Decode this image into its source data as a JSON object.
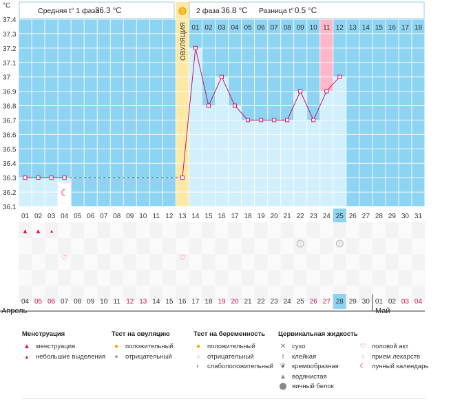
{
  "unit_label": "°C",
  "header": {
    "phase1_label": "Средняя t° 1 фаза",
    "phase1_value": "36.3 °C",
    "phase2_label": "2 фаза",
    "phase2_value": "36.8 °C",
    "diff_label": "Разница t°",
    "diff_value": "0.5 °C"
  },
  "ovulation_label": "ОВУЛЯЦИЯ",
  "phase2_day_labels": [
    "01",
    "02",
    "03",
    "04",
    "05",
    "06",
    "07",
    "08",
    "09",
    "10",
    "11",
    "12",
    "13",
    "14",
    "15",
    "16",
    "17",
    "18"
  ],
  "cycle_days": [
    "01",
    "02",
    "03",
    "04",
    "05",
    "06",
    "07",
    "08",
    "09",
    "10",
    "11",
    "12",
    "13",
    "14",
    "15",
    "16",
    "17",
    "18",
    "19",
    "20",
    "21",
    "22",
    "23",
    "24",
    "25",
    "26",
    "27",
    "28",
    "29",
    "30",
    "31"
  ],
  "calendar_dates": [
    "04",
    "05",
    "06",
    "07",
    "08",
    "09",
    "10",
    "11",
    "12",
    "13",
    "14",
    "15",
    "16",
    "17",
    "18",
    "19",
    "20",
    "21",
    "22",
    "23",
    "24",
    "25",
    "26",
    "27",
    "28",
    "29",
    "30",
    "01",
    "02",
    "03",
    "04"
  ],
  "weekend_dates_idx": [
    1,
    2,
    8,
    9,
    15,
    16,
    22,
    23,
    29,
    30
  ],
  "months": {
    "april": "Апрель",
    "may": "Май"
  },
  "colors": {
    "bg_blue": "#8dd3f2",
    "fill_light": "#d2effc",
    "line": "#cc1166",
    "ovulation": "#fde9a5",
    "highlight_pink": "#ffb6c8",
    "current_day": "#8dd3f2",
    "weekend_red": "#cc1144"
  },
  "chart_data": {
    "type": "line",
    "xlabel": "",
    "ylabel": "°C",
    "ylim": [
      36.1,
      37.4
    ],
    "yticks": [
      36.1,
      36.2,
      36.3,
      36.4,
      36.5,
      36.6,
      36.7,
      36.8,
      36.9,
      37,
      37.1,
      37.2,
      37.3,
      37.4
    ],
    "x": [
      1,
      2,
      3,
      4,
      13,
      14,
      15,
      16,
      17,
      18,
      19,
      20,
      21,
      22,
      23,
      24,
      25
    ],
    "values": [
      36.3,
      36.3,
      36.3,
      36.3,
      36.3,
      37.2,
      36.8,
      37.0,
      36.8,
      36.7,
      36.7,
      36.7,
      36.7,
      36.9,
      36.7,
      36.9,
      37.0
    ],
    "coverline": 36.3,
    "ovulation_day": 13,
    "current_day": 25,
    "moon_day": 4
  },
  "markers": {
    "menstruation_days": [
      1,
      2
    ],
    "light_spotting_days": [
      3
    ],
    "sex_days": [
      4,
      13
    ],
    "medication_days": [
      22,
      25
    ]
  },
  "legend": {
    "menstruation": {
      "title": "Менструация",
      "items": [
        "менструация",
        "небольшие выделения"
      ]
    },
    "ovulation_test": {
      "title": "Тест на овуляцию",
      "items": [
        "положительный",
        "отрицательный"
      ]
    },
    "pregnancy_test": {
      "title": "Тест на беременность",
      "items": [
        "положительный",
        "отрицательный",
        "слабоположительный"
      ]
    },
    "cervical": {
      "title": "Цервикальная жидкость",
      "items": [
        "сухо",
        "клейкая",
        "кремообразная",
        "водянистая",
        "яичный белок"
      ]
    },
    "other": {
      "items": [
        "половой акт",
        "прием лекарств",
        "лунный календарь"
      ]
    }
  }
}
